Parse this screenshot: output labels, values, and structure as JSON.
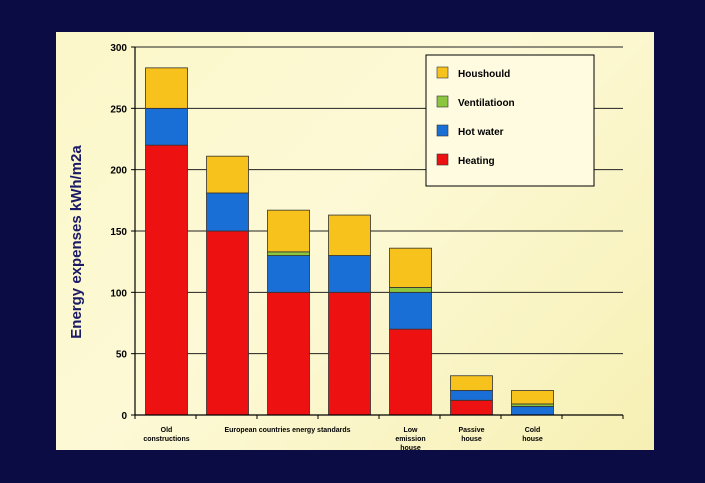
{
  "chart_data": {
    "type": "bar",
    "stacked": true,
    "ylabel": "Energy expenses  kWh/m2a",
    "ylim": [
      0,
      300
    ],
    "yticks": [
      "0",
      "50",
      "100",
      "150",
      "200",
      "250",
      "300"
    ],
    "grid": true,
    "legend_position": "top-right",
    "categories": [
      [
        "Old",
        "constructions"
      ],
      [
        "European countries energy standards"
      ],
      [
        ""
      ],
      [
        ""
      ],
      [
        "Low",
        "emission",
        "house"
      ],
      [
        "Passive",
        "house"
      ],
      [
        "Cold",
        "house"
      ]
    ],
    "series": [
      {
        "name": "Heating",
        "color": "#ee1111",
        "values": [
          220,
          150,
          100,
          100,
          70,
          12,
          0
        ]
      },
      {
        "name": "Hot water",
        "color": "#1a6fd6",
        "values": [
          30,
          31,
          30,
          30,
          30,
          8,
          7
        ]
      },
      {
        "name": "Ventilatioon",
        "color": "#8cc63e",
        "values": [
          0,
          0,
          3,
          0,
          4,
          0,
          2
        ]
      },
      {
        "name": "Houshould",
        "color": "#f7c21b",
        "values": [
          33,
          30,
          34,
          33,
          32,
          12,
          11
        ]
      }
    ],
    "legend_order": [
      "Houshould",
      "Ventilatioon",
      "Hot water",
      "Heating"
    ]
  }
}
